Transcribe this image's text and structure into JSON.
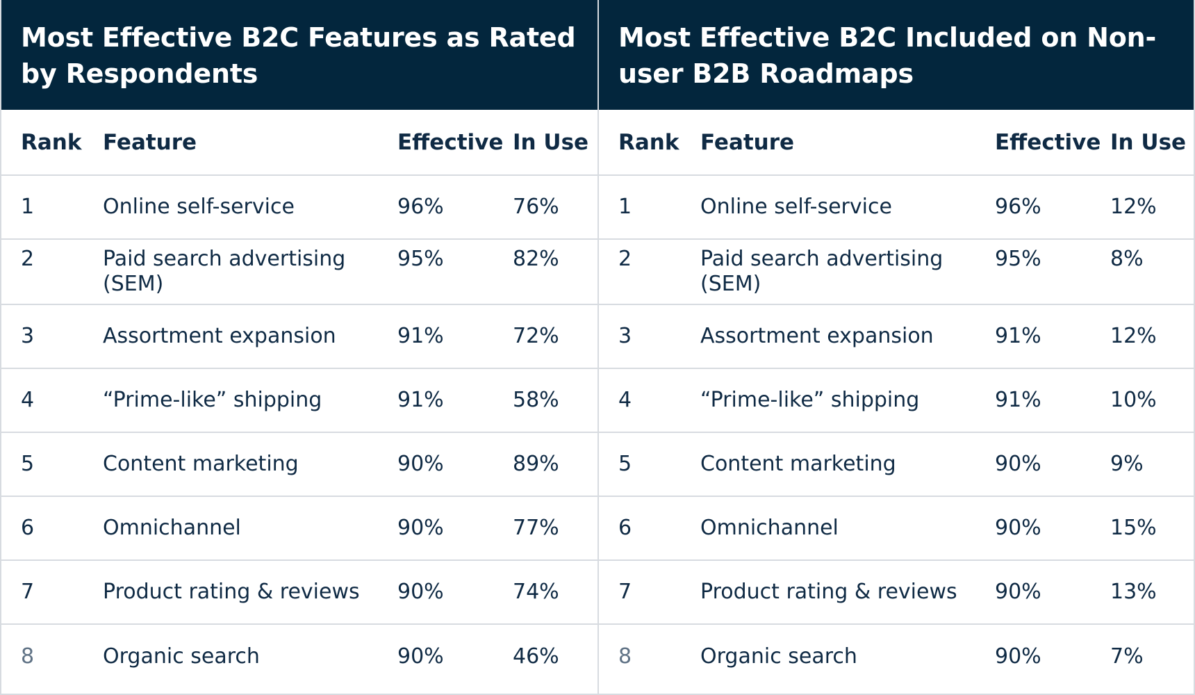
{
  "left": {
    "title": "Most Effective B2C Features as Rated by Respondents",
    "columns": [
      "Rank",
      "Feature",
      "Effective",
      "In Use"
    ],
    "rows": [
      {
        "rank": "1",
        "feature": "Online self-service",
        "effective": "96%",
        "in_use": "76%"
      },
      {
        "rank": "2",
        "feature": "Paid search advertising (SEM)",
        "effective": "95%",
        "in_use": "82%"
      },
      {
        "rank": "3",
        "feature": "Assortment expansion",
        "effective": "91%",
        "in_use": "72%"
      },
      {
        "rank": "4",
        "feature": "“Prime-like” shipping",
        "effective": "91%",
        "in_use": "58%"
      },
      {
        "rank": "5",
        "feature": "Content marketing",
        "effective": "90%",
        "in_use": "89%"
      },
      {
        "rank": "6",
        "feature": "Omnichannel",
        "effective": "90%",
        "in_use": "77%"
      },
      {
        "rank": "7",
        "feature": "Product rating & reviews",
        "effective": "90%",
        "in_use": "74%"
      },
      {
        "rank": "8",
        "feature": "Organic search",
        "effective": "90%",
        "in_use": "46%"
      }
    ]
  },
  "right": {
    "title": "Most Effective B2C Included on Non-user B2B Roadmaps",
    "columns": [
      "Rank",
      "Feature",
      "Effective",
      "In Use"
    ],
    "rows": [
      {
        "rank": "1",
        "feature": "Online self-service",
        "effective": "96%",
        "in_use": "12%"
      },
      {
        "rank": "2",
        "feature": "Paid search advertising (SEM)",
        "effective": "95%",
        "in_use": "8%"
      },
      {
        "rank": "3",
        "feature": "Assortment expansion",
        "effective": "91%",
        "in_use": "12%"
      },
      {
        "rank": "4",
        "feature": "“Prime-like” shipping",
        "effective": "91%",
        "in_use": "10%"
      },
      {
        "rank": "5",
        "feature": "Content marketing",
        "effective": "90%",
        "in_use": "9%"
      },
      {
        "rank": "6",
        "feature": "Omnichannel",
        "effective": "90%",
        "in_use": "15%"
      },
      {
        "rank": "7",
        "feature": "Product rating & reviews",
        "effective": "90%",
        "in_use": "13%"
      },
      {
        "rank": "8",
        "feature": "Organic search",
        "effective": "90%",
        "in_use": "7%"
      }
    ]
  },
  "colors": {
    "header_bg": "#03263d",
    "text": "#0f2a44",
    "rule": "#d7dbe0"
  }
}
